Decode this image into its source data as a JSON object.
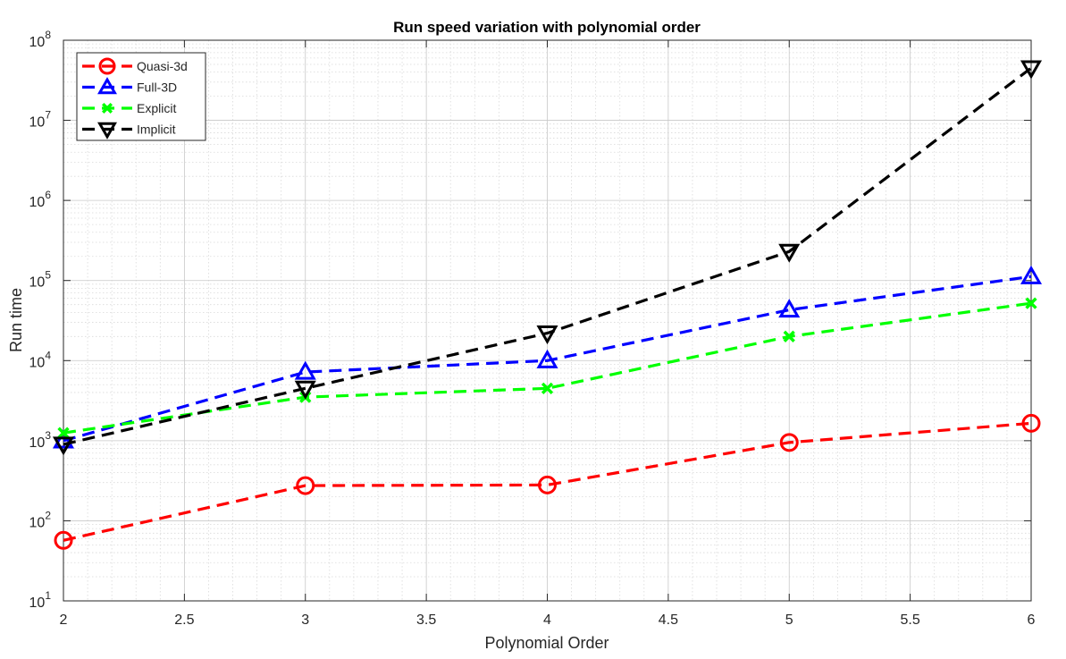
{
  "chart_data": {
    "type": "line",
    "title": "Run speed variation with polynomial order",
    "xlabel": "Polynomial Order",
    "ylabel": "Run time",
    "xscale": "linear",
    "yscale": "log",
    "xlim": [
      2,
      6
    ],
    "ylim": [
      10,
      100000000
    ],
    "xticks": [
      "2",
      "2.5",
      "3",
      "3.5",
      "4",
      "4.5",
      "5",
      "5.5",
      "6"
    ],
    "yticks": [
      {
        "base": "10",
        "exp": "1"
      },
      {
        "base": "10",
        "exp": "2"
      },
      {
        "base": "10",
        "exp": "3"
      },
      {
        "base": "10",
        "exp": "4"
      },
      {
        "base": "10",
        "exp": "5"
      },
      {
        "base": "10",
        "exp": "6"
      },
      {
        "base": "10",
        "exp": "7"
      },
      {
        "base": "10",
        "exp": "8"
      }
    ],
    "grid": true,
    "minor_grid": true,
    "legend_position": "top-left",
    "x": [
      2,
      3,
      4,
      5,
      6
    ],
    "series": [
      {
        "name": "Quasi-3d",
        "color": "#ff0000",
        "marker": "circle",
        "values": [
          57,
          275,
          280,
          950,
          1650
        ]
      },
      {
        "name": "Full-3D",
        "color": "#0000ff",
        "marker": "triangle-up",
        "values": [
          1000,
          7200,
          10000,
          43000,
          112000
        ]
      },
      {
        "name": "Explicit",
        "color": "#00ff00",
        "marker": "x",
        "values": [
          1250,
          3500,
          4500,
          20000,
          52000
        ]
      },
      {
        "name": "Implicit",
        "color": "#000000",
        "marker": "triangle-down",
        "values": [
          900,
          4500,
          22000,
          230000,
          45000000
        ]
      }
    ]
  }
}
